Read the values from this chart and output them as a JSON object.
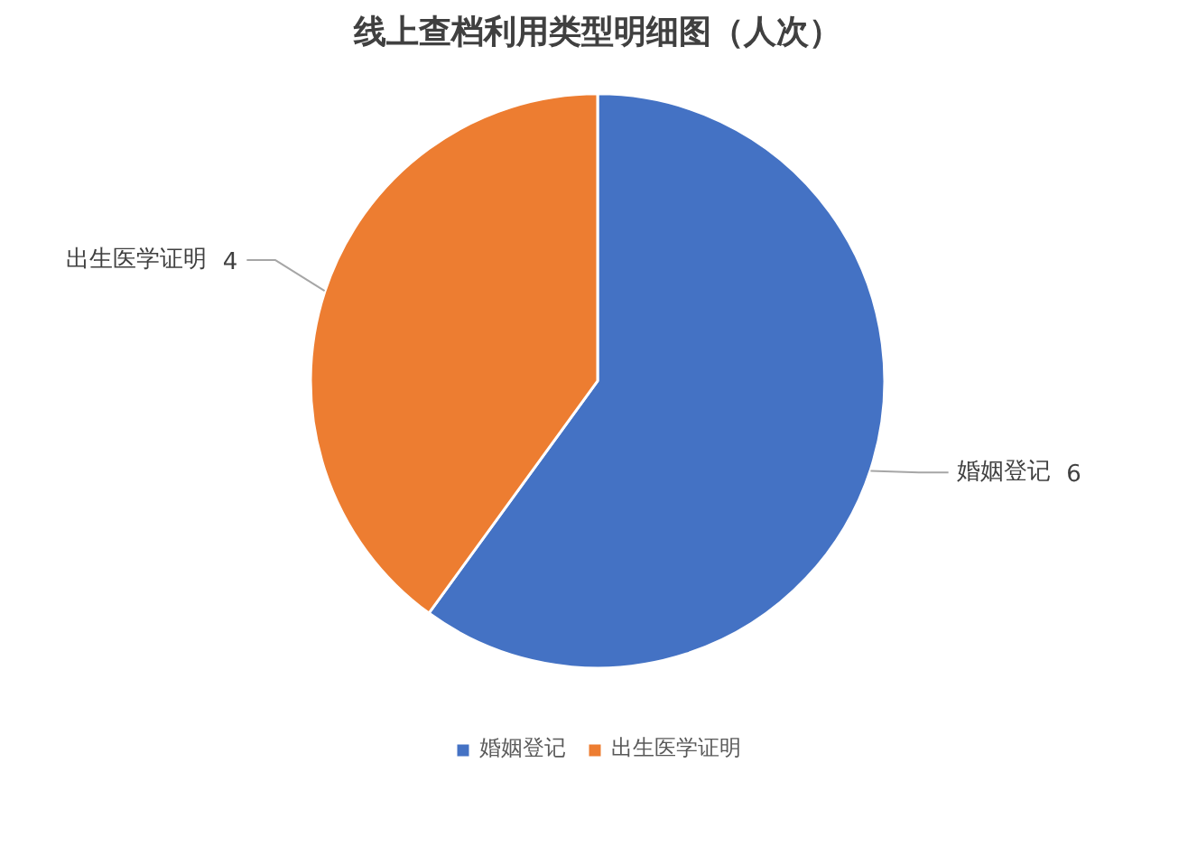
{
  "chart_data": {
    "type": "pie",
    "title": "线上查档利用类型明细图（人次）",
    "categories": [
      "婚姻登记",
      "出生医学证明"
    ],
    "values": [
      6,
      4
    ],
    "colors": [
      "#4472c4",
      "#ed7d31"
    ],
    "data_labels": true,
    "legend": "bottom"
  }
}
